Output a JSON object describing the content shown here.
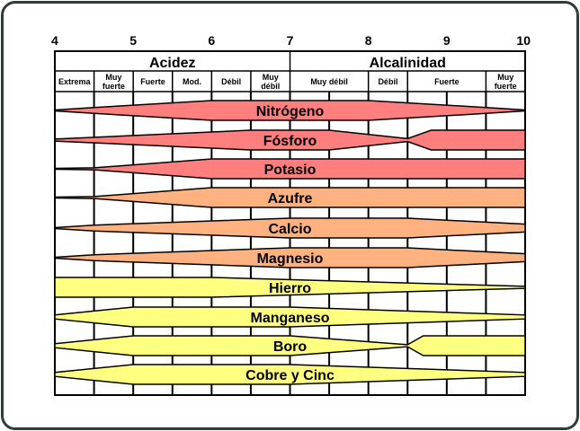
{
  "ph_ticks": [
    "4",
    "5",
    "6",
    "7",
    "8",
    "9",
    "10"
  ],
  "header": {
    "acid": "Acidez",
    "alkaline": "Alcalinidad"
  },
  "subheaders": [
    {
      "lines": [
        "Extrema"
      ],
      "from": 4,
      "to": 4.5
    },
    {
      "lines": [
        "Muy",
        "fuerte"
      ],
      "from": 4.5,
      "to": 5
    },
    {
      "lines": [
        "Fuerte"
      ],
      "from": 5,
      "to": 5.5
    },
    {
      "lines": [
        "Mod."
      ],
      "from": 5.5,
      "to": 6
    },
    {
      "lines": [
        "Débil"
      ],
      "from": 6,
      "to": 6.5
    },
    {
      "lines": [
        "Muy",
        "débil"
      ],
      "from": 6.5,
      "to": 7
    },
    {
      "lines": [
        "Muy débil"
      ],
      "from": 7,
      "to": 8
    },
    {
      "lines": [
        "Débil"
      ],
      "from": 8,
      "to": 8.5
    },
    {
      "lines": [
        "Fuerte"
      ],
      "from": 8.5,
      "to": 9.5
    },
    {
      "lines": [
        "Muy",
        "fuerte"
      ],
      "from": 9.5,
      "to": 10
    }
  ],
  "colors": {
    "major": "#ff7f7f",
    "secondary": "#ffb27f",
    "micro": "#ffff80"
  },
  "nutrients": [
    {
      "name": "Nitrógeno",
      "group": "major",
      "profile": [
        [
          4,
          0
        ],
        [
          4.5,
          0.3
        ],
        [
          6,
          1
        ],
        [
          8,
          1
        ],
        [
          9.5,
          0.3
        ],
        [
          10,
          0.05
        ]
      ]
    },
    {
      "name": "Fósforo",
      "group": "major",
      "profile": [
        [
          4,
          0.1
        ],
        [
          6.5,
          1
        ],
        [
          7.5,
          1
        ],
        [
          8.5,
          0.15
        ],
        [
          8.8,
          1
        ],
        [
          10,
          1
        ]
      ]
    },
    {
      "name": "Potasio",
      "group": "major",
      "profile": [
        [
          4,
          0
        ],
        [
          4.5,
          0.1
        ],
        [
          6,
          1
        ],
        [
          10,
          1
        ]
      ]
    },
    {
      "name": "Azufre",
      "group": "secondary",
      "profile": [
        [
          4,
          0
        ],
        [
          4.5,
          0.1
        ],
        [
          6,
          1
        ],
        [
          10,
          1
        ]
      ]
    },
    {
      "name": "Calcio",
      "group": "secondary",
      "profile": [
        [
          4,
          0.05
        ],
        [
          4.5,
          0.3
        ],
        [
          7,
          1
        ],
        [
          8.5,
          1
        ],
        [
          10,
          0.4
        ]
      ]
    },
    {
      "name": "Magnesio",
      "group": "secondary",
      "profile": [
        [
          4,
          0.05
        ],
        [
          4.5,
          0.3
        ],
        [
          7,
          1
        ],
        [
          8.5,
          1
        ],
        [
          10,
          0.4
        ]
      ]
    },
    {
      "name": "Hierro",
      "group": "micro",
      "profile": [
        [
          4,
          1
        ],
        [
          6,
          1
        ],
        [
          10,
          0.1
        ]
      ]
    },
    {
      "name": "Manganeso",
      "group": "micro",
      "profile": [
        [
          4,
          0.2
        ],
        [
          5,
          1
        ],
        [
          7,
          1
        ],
        [
          10,
          0.2
        ]
      ]
    },
    {
      "name": "Boro",
      "group": "micro",
      "profile": [
        [
          4,
          0.2
        ],
        [
          5,
          1
        ],
        [
          7,
          1
        ],
        [
          8.5,
          0.1
        ],
        [
          8.7,
          1
        ],
        [
          10,
          1
        ]
      ]
    },
    {
      "name": "Cobre y Cinc",
      "group": "micro",
      "profile": [
        [
          4,
          0.2
        ],
        [
          5,
          1
        ],
        [
          7,
          1
        ],
        [
          10,
          0.2
        ]
      ]
    }
  ]
}
